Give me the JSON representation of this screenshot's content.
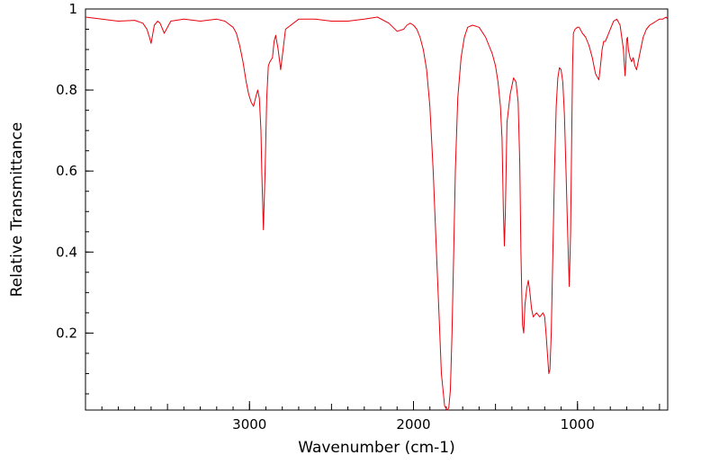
{
  "chart_data": {
    "type": "line",
    "title": "",
    "xlabel": "Wavenumber (cm-1)",
    "ylabel": "Relative Transmittance",
    "xlim": [
      4000,
      450
    ],
    "ylim": [
      0.01,
      1.0
    ],
    "x_reversed": true,
    "grid": false,
    "legend": "none",
    "x_ticks": [
      3000,
      2000,
      1000
    ],
    "x_tick_labels": [
      "3000",
      "2000",
      "1000"
    ],
    "y_ticks": [
      1.0,
      0.8,
      0.6,
      0.4,
      0.2
    ],
    "y_tick_labels": [
      "1",
      "0.8",
      "0.6",
      "0.4",
      "0.2"
    ],
    "series": [
      {
        "color": "#e8000b",
        "x": [
          4000,
          3900,
          3800,
          3700,
          3650,
          3625,
          3610,
          3600,
          3580,
          3560,
          3545,
          3520,
          3480,
          3400,
          3300,
          3200,
          3150,
          3100,
          3080,
          3060,
          3040,
          3020,
          3005,
          2990,
          2975,
          2960,
          2950,
          2940,
          2930,
          2925,
          2915,
          2905,
          2895,
          2885,
          2875,
          2860,
          2850,
          2840,
          2825,
          2810,
          2780,
          2700,
          2600,
          2500,
          2400,
          2300,
          2220,
          2150,
          2100,
          2060,
          2040,
          2020,
          2000,
          1980,
          1960,
          1940,
          1920,
          1900,
          1880,
          1860,
          1845,
          1830,
          1810,
          1795,
          1785,
          1775,
          1765,
          1755,
          1745,
          1730,
          1710,
          1690,
          1670,
          1640,
          1600,
          1560,
          1540,
          1520,
          1500,
          1485,
          1470,
          1460,
          1452,
          1446,
          1440,
          1430,
          1410,
          1390,
          1375,
          1362,
          1352,
          1345,
          1340,
          1335,
          1328,
          1320,
          1310,
          1300,
          1290,
          1280,
          1270,
          1260,
          1250,
          1240,
          1230,
          1220,
          1210,
          1200,
          1190,
          1182,
          1175,
          1168,
          1160,
          1150,
          1140,
          1130,
          1120,
          1110,
          1100,
          1090,
          1080,
          1070,
          1060,
          1050,
          1042,
          1035,
          1030,
          1025,
          1015,
          1000,
          990,
          970,
          950,
          930,
          910,
          890,
          870,
          860,
          850,
          840,
          830,
          820,
          800,
          780,
          760,
          740,
          720,
          710,
          705,
          700,
          695,
          690,
          680,
          670,
          660,
          650,
          640,
          620,
          600,
          580,
          560,
          540,
          520,
          500,
          480,
          460,
          450
        ],
        "values": [
          0.98,
          0.975,
          0.97,
          0.972,
          0.965,
          0.95,
          0.93,
          0.915,
          0.96,
          0.97,
          0.965,
          0.94,
          0.97,
          0.975,
          0.97,
          0.975,
          0.97,
          0.955,
          0.94,
          0.91,
          0.87,
          0.82,
          0.79,
          0.77,
          0.76,
          0.785,
          0.8,
          0.78,
          0.7,
          0.6,
          0.455,
          0.6,
          0.78,
          0.86,
          0.87,
          0.88,
          0.92,
          0.935,
          0.9,
          0.85,
          0.95,
          0.975,
          0.975,
          0.97,
          0.97,
          0.975,
          0.98,
          0.965,
          0.945,
          0.95,
          0.96,
          0.965,
          0.96,
          0.95,
          0.93,
          0.9,
          0.85,
          0.76,
          0.6,
          0.4,
          0.25,
          0.1,
          0.02,
          0.01,
          0.015,
          0.06,
          0.2,
          0.4,
          0.6,
          0.78,
          0.88,
          0.93,
          0.955,
          0.96,
          0.955,
          0.93,
          0.91,
          0.89,
          0.86,
          0.82,
          0.76,
          0.68,
          0.5,
          0.415,
          0.5,
          0.72,
          0.79,
          0.83,
          0.82,
          0.77,
          0.62,
          0.4,
          0.3,
          0.22,
          0.2,
          0.27,
          0.31,
          0.33,
          0.3,
          0.26,
          0.24,
          0.245,
          0.25,
          0.245,
          0.24,
          0.245,
          0.25,
          0.24,
          0.19,
          0.14,
          0.1,
          0.11,
          0.2,
          0.4,
          0.6,
          0.76,
          0.83,
          0.855,
          0.85,
          0.82,
          0.74,
          0.6,
          0.45,
          0.315,
          0.45,
          0.7,
          0.86,
          0.94,
          0.95,
          0.955,
          0.955,
          0.94,
          0.93,
          0.91,
          0.88,
          0.84,
          0.825,
          0.86,
          0.9,
          0.92,
          0.92,
          0.93,
          0.95,
          0.97,
          0.975,
          0.96,
          0.9,
          0.835,
          0.87,
          0.925,
          0.93,
          0.9,
          0.88,
          0.87,
          0.88,
          0.86,
          0.85,
          0.89,
          0.93,
          0.95,
          0.96,
          0.965,
          0.97,
          0.975,
          0.975,
          0.98,
          0.975
        ]
      }
    ]
  }
}
